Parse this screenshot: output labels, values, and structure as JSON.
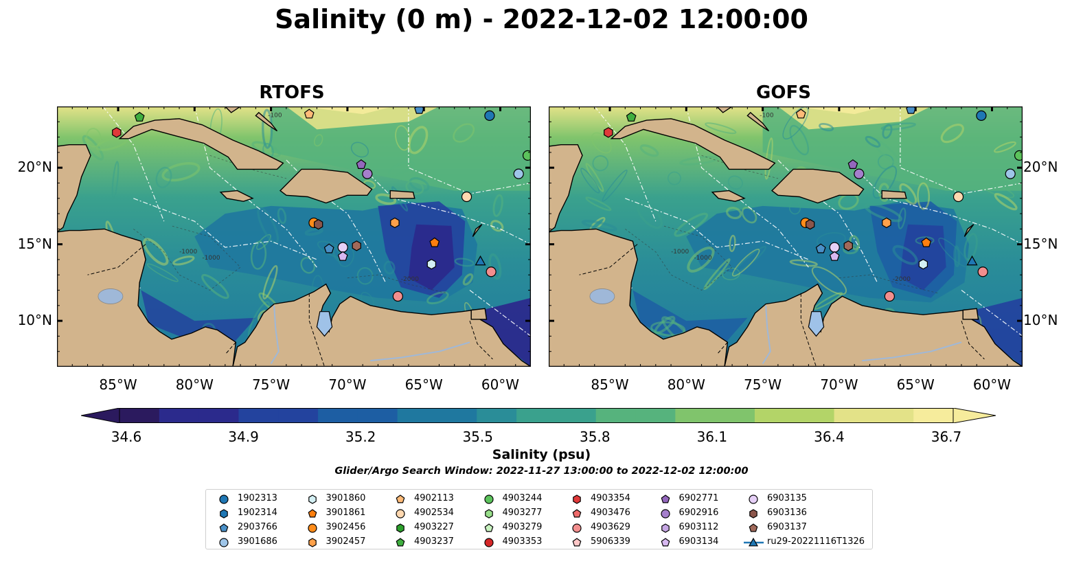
{
  "title": "Salinity (0 m) - 2022-12-02 12:00:00",
  "panels": [
    {
      "title": "RTOFS"
    },
    {
      "title": "GOFS"
    }
  ],
  "axes": {
    "lon_ticks": [
      "85°W",
      "80°W",
      "75°W",
      "70°W",
      "65°W",
      "60°W"
    ],
    "lat_ticks": [
      "20°N",
      "15°N",
      "10°N"
    ],
    "contour_labels": [
      "-100",
      "-1000",
      "-2000"
    ]
  },
  "colorbar": {
    "label": "Salinity (psu)",
    "ticks": [
      "34.6",
      "34.9",
      "35.2",
      "35.5",
      "35.8",
      "36.1",
      "36.4",
      "36.7"
    ],
    "range": [
      34.6,
      36.7
    ],
    "extend": "both",
    "colors": [
      "#2b1a5e",
      "#2b2a8c",
      "#23439e",
      "#1d5ea3",
      "#1f789f",
      "#2a8d98",
      "#3aa18d",
      "#56b37d",
      "#80c46c",
      "#b3d468",
      "#e3e288",
      "#f6ec9c"
    ]
  },
  "search_window": "Glider/Argo Search Window: 2022-11-27 13:00:00 to 2022-12-02 12:00:00",
  "legend": [
    {
      "label": "1902313",
      "marker": "circle",
      "color": "#1f77b4"
    },
    {
      "label": "1902314",
      "marker": "hexagon",
      "color": "#1f77b4"
    },
    {
      "label": "2903766",
      "marker": "pentagon",
      "color": "#4a90c8"
    },
    {
      "label": "3901686",
      "marker": "circle",
      "color": "#9ec5e8"
    },
    {
      "label": "3901860",
      "marker": "hexagon",
      "color": "#d4f0f4"
    },
    {
      "label": "3901861",
      "marker": "pentagon",
      "color": "#ff7f0e"
    },
    {
      "label": "3902456",
      "marker": "circle",
      "color": "#ff8c1a"
    },
    {
      "label": "3902457",
      "marker": "hexagon",
      "color": "#ffa14a"
    },
    {
      "label": "4902113",
      "marker": "pentagon",
      "color": "#ffbb78"
    },
    {
      "label": "4902534",
      "marker": "circle",
      "color": "#ffd8b0"
    },
    {
      "label": "4903227",
      "marker": "hexagon",
      "color": "#2ca02c"
    },
    {
      "label": "4903237",
      "marker": "pentagon",
      "color": "#3fae3f"
    },
    {
      "label": "4903244",
      "marker": "circle",
      "color": "#5cc35c"
    },
    {
      "label": "4903277",
      "marker": "hexagon",
      "color": "#98df8a"
    },
    {
      "label": "4903279",
      "marker": "pentagon",
      "color": "#c8f2c0"
    },
    {
      "label": "4903353",
      "marker": "circle",
      "color": "#d62728"
    },
    {
      "label": "4903354",
      "marker": "hexagon",
      "color": "#e0393a"
    },
    {
      "label": "4903476",
      "marker": "pentagon",
      "color": "#ee6a6a"
    },
    {
      "label": "4903629",
      "marker": "circle",
      "color": "#f28e8e"
    },
    {
      "label": "5906339",
      "marker": "pentagon",
      "color": "#ffc7c7"
    },
    {
      "label": "6902771",
      "marker": "pentagon",
      "color": "#9467bd"
    },
    {
      "label": "6902916",
      "marker": "circle",
      "color": "#a57fcc"
    },
    {
      "label": "6903112",
      "marker": "hexagon",
      "color": "#c5a6e3"
    },
    {
      "label": "6903134",
      "marker": "pentagon",
      "color": "#d7b8f0"
    },
    {
      "label": "6903135",
      "marker": "circle",
      "color": "#e6d0f7"
    },
    {
      "label": "6903136",
      "marker": "hexagon",
      "color": "#8c564b"
    },
    {
      "label": "6903137",
      "marker": "pentagon",
      "color": "#a0695a"
    },
    {
      "label": "ru29-20221116T1326",
      "marker": "triangle-line",
      "color": "#1f77b4"
    }
  ],
  "stations": [
    {
      "lon": -85.1,
      "lat": 22.3,
      "marker": "hexagon",
      "color": "#e0393a"
    },
    {
      "lon": -83.6,
      "lat": 23.3,
      "marker": "pentagon",
      "color": "#3fae3f"
    },
    {
      "lon": -72.5,
      "lat": 23.5,
      "marker": "pentagon",
      "color": "#ffbb78"
    },
    {
      "lon": -65.3,
      "lat": 23.8,
      "marker": "pentagon",
      "color": "#4a90c8"
    },
    {
      "lon": -60.7,
      "lat": 23.4,
      "marker": "circle",
      "color": "#1f77b4"
    },
    {
      "lon": -58.2,
      "lat": 20.8,
      "marker": "circle",
      "color": "#5cc35c"
    },
    {
      "lon": -58.8,
      "lat": 19.6,
      "marker": "circle",
      "color": "#9ec5e8"
    },
    {
      "lon": -69.1,
      "lat": 20.2,
      "marker": "pentagon",
      "color": "#9467bd"
    },
    {
      "lon": -68.7,
      "lat": 19.6,
      "marker": "circle",
      "color": "#a57fcc"
    },
    {
      "lon": -62.2,
      "lat": 18.1,
      "marker": "circle",
      "color": "#ffd8b0"
    },
    {
      "lon": -72.2,
      "lat": 16.4,
      "marker": "circle",
      "color": "#ff8c1a"
    },
    {
      "lon": -71.9,
      "lat": 16.3,
      "marker": "hexagon",
      "color": "#8c564b"
    },
    {
      "lon": -66.9,
      "lat": 16.4,
      "marker": "hexagon",
      "color": "#ffa14a"
    },
    {
      "lon": -64.3,
      "lat": 15.1,
      "marker": "pentagon",
      "color": "#ff7f0e"
    },
    {
      "lon": -69.4,
      "lat": 14.9,
      "marker": "hexagon",
      "color": "#a0695a"
    },
    {
      "lon": -70.3,
      "lat": 14.8,
      "marker": "circle",
      "color": "#e6d0f7"
    },
    {
      "lon": -71.2,
      "lat": 14.7,
      "marker": "pentagon",
      "color": "#4a90c8"
    },
    {
      "lon": -70.3,
      "lat": 14.2,
      "marker": "pentagon",
      "color": "#d7b8f0"
    },
    {
      "lon": -64.5,
      "lat": 13.7,
      "marker": "hexagon",
      "color": "#d4f0f4"
    },
    {
      "lon": -61.3,
      "lat": 13.9,
      "marker": "triangle",
      "color": "#1f77b4"
    },
    {
      "lon": -60.6,
      "lat": 13.2,
      "marker": "circle",
      "color": "#f28e8e"
    },
    {
      "lon": -66.7,
      "lat": 11.6,
      "marker": "circle",
      "color": "#f28e8e"
    }
  ]
}
